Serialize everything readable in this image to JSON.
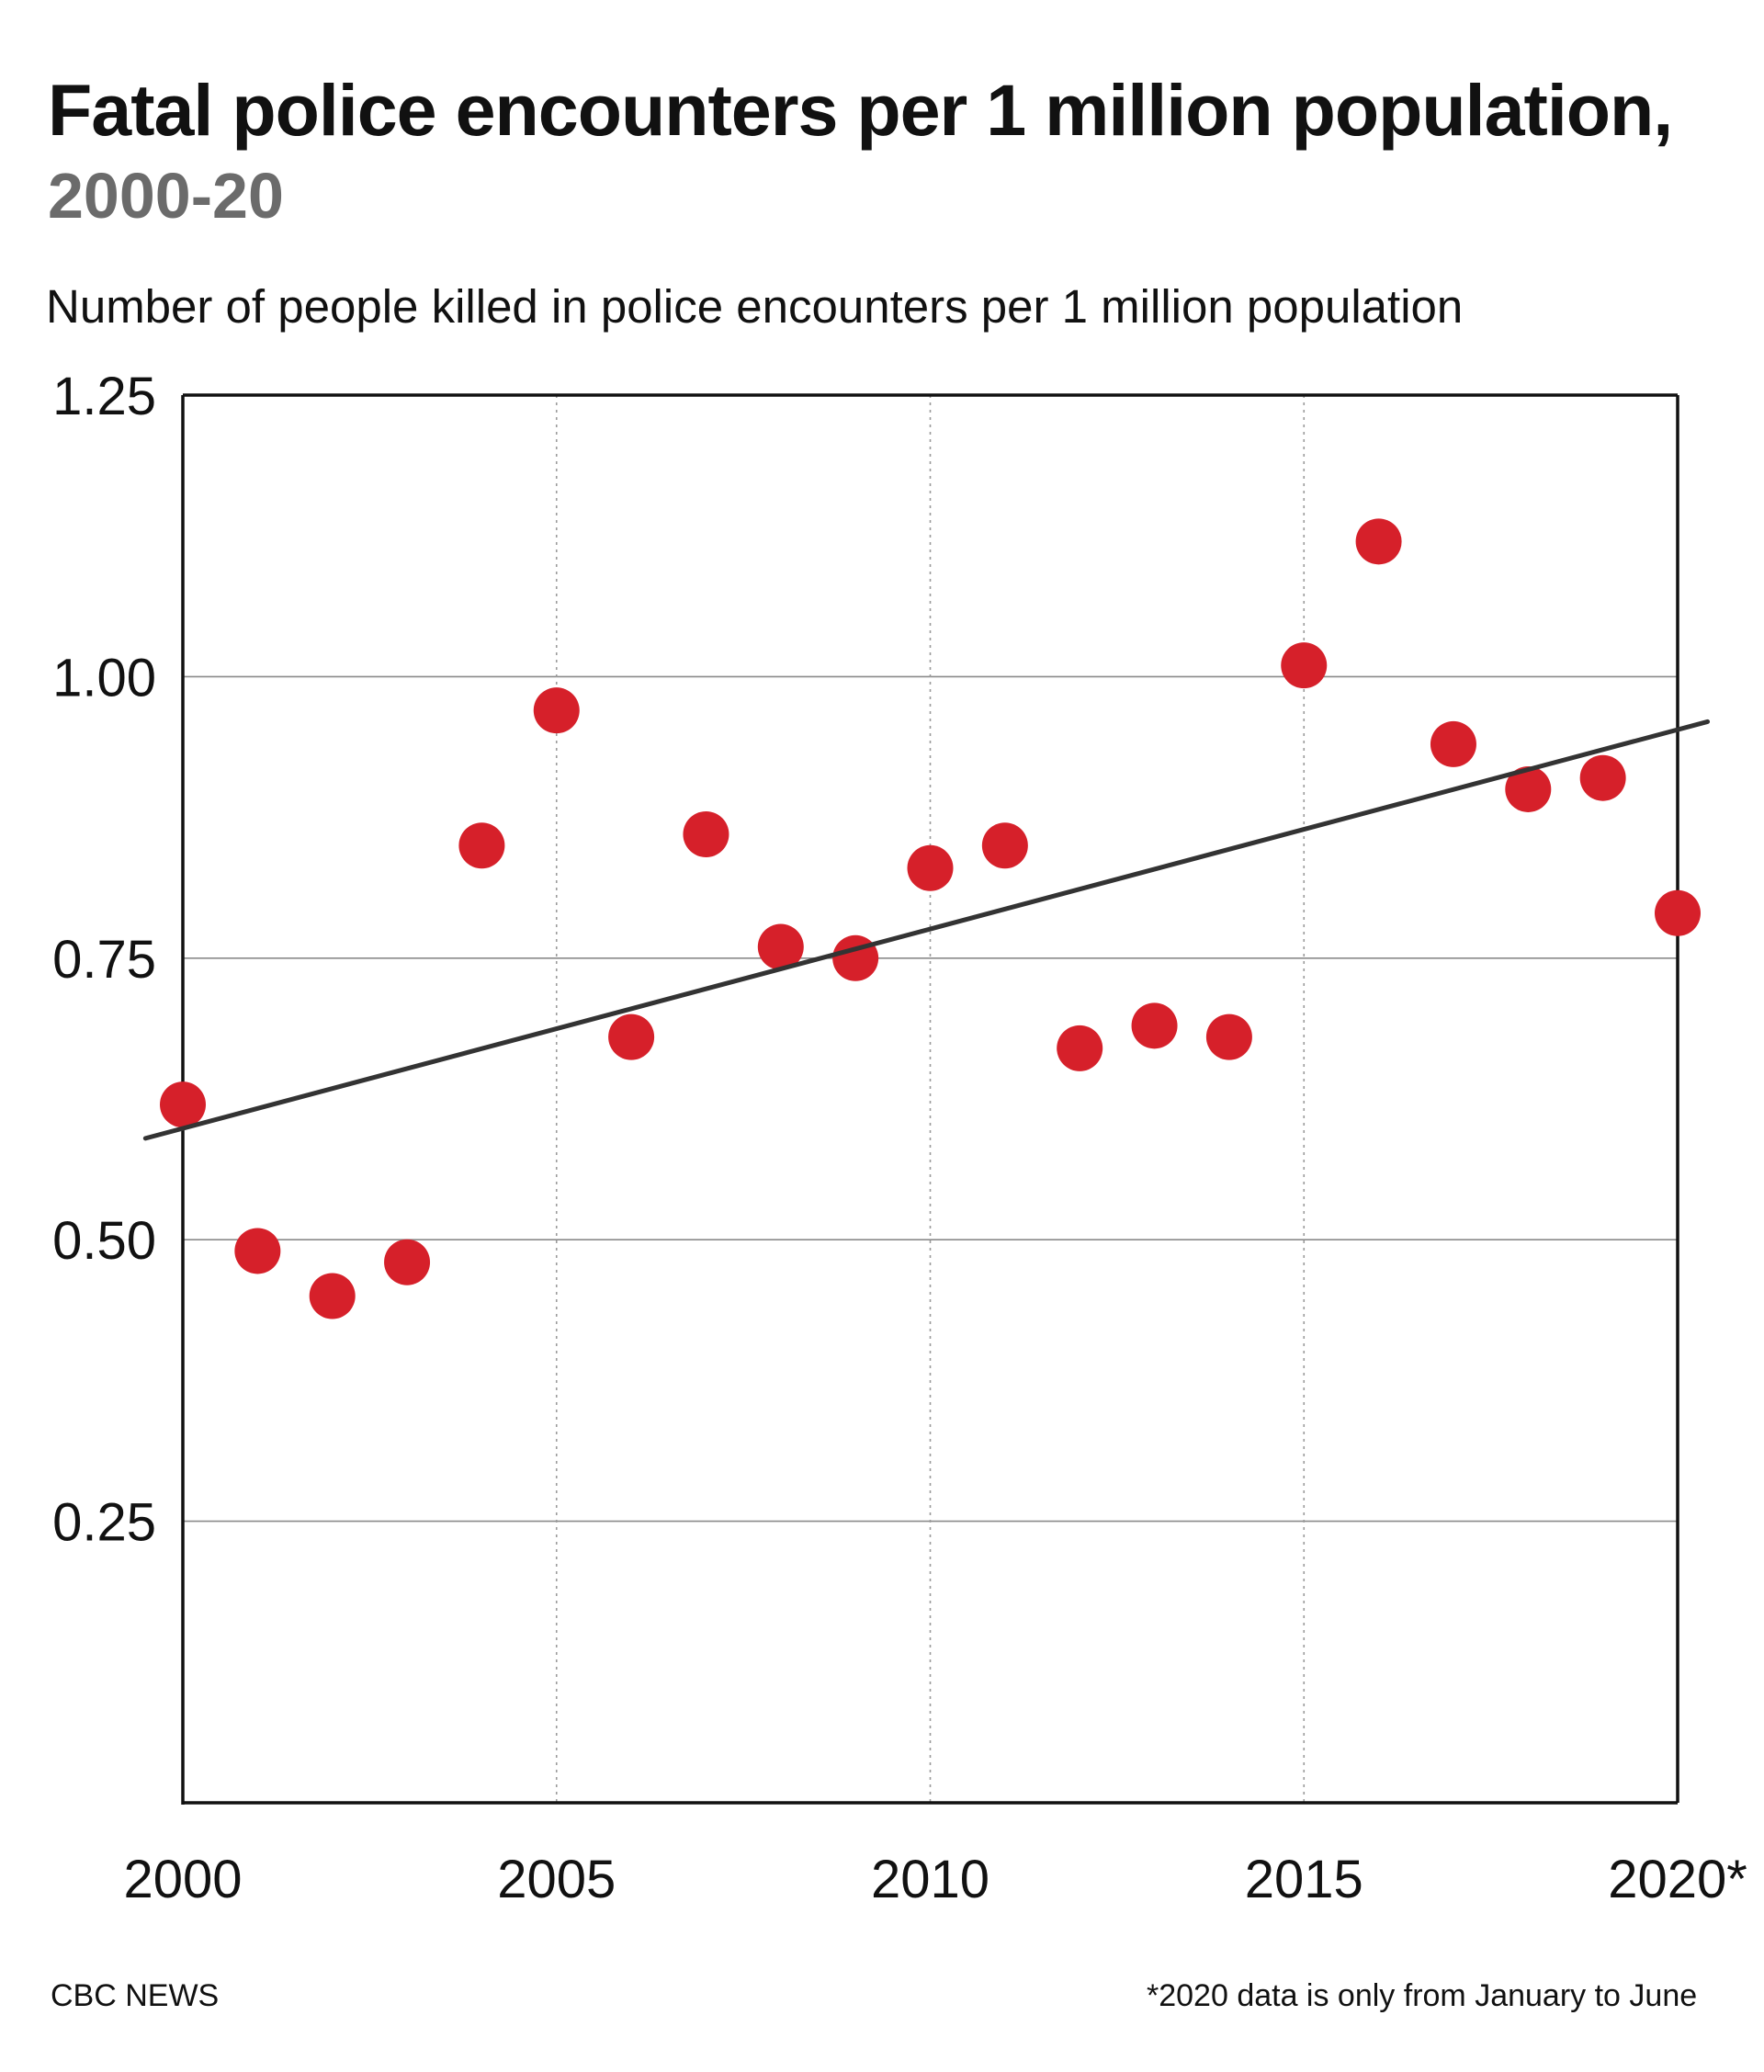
{
  "title": "Fatal police encounters per 1 million population,",
  "subtitle": "2000-20",
  "footer": {
    "source": "CBC NEWS",
    "note": "*2020 data is only from January to June"
  },
  "colors": {
    "point": "#d6202a",
    "trend": "#333333",
    "grid": "#8a8a8a",
    "axis": "#111111"
  },
  "chart_data": {
    "type": "scatter",
    "title": "Fatal police encounters per 1 million population, 2000-20",
    "ylabel": "Number of people killed in police encounters per 1 million population",
    "xlabel": "",
    "xlim": [
      2000,
      2020
    ],
    "ylim": [
      0,
      1.25
    ],
    "x_ticks": [
      2000,
      2005,
      2010,
      2015,
      2020
    ],
    "x_tick_labels": [
      "2000",
      "2005",
      "2010",
      "2015",
      "2020*"
    ],
    "y_ticks": [
      0.25,
      0.5,
      0.75,
      1.0,
      1.25
    ],
    "y_tick_labels": [
      "0.25",
      "0.50",
      "0.75",
      "1.00",
      "1.25"
    ],
    "grid": {
      "horizontal": true,
      "vertical": "dotted"
    },
    "series": [
      {
        "x": [
          2000,
          2001,
          2002,
          2003,
          2004,
          2005,
          2006,
          2007,
          2008,
          2009,
          2010,
          2011,
          2012,
          2013,
          2014,
          2015,
          2016,
          2017,
          2018,
          2019,
          2020
        ],
        "y": [
          0.62,
          0.49,
          0.45,
          0.48,
          0.85,
          0.97,
          0.68,
          0.86,
          0.76,
          0.75,
          0.83,
          0.85,
          0.67,
          0.69,
          0.68,
          1.01,
          1.12,
          0.94,
          0.9,
          0.91,
          0.79
        ]
      }
    ],
    "trendline": {
      "x": [
        1999.5,
        2020.4
      ],
      "y": [
        0.59,
        0.96
      ]
    }
  }
}
